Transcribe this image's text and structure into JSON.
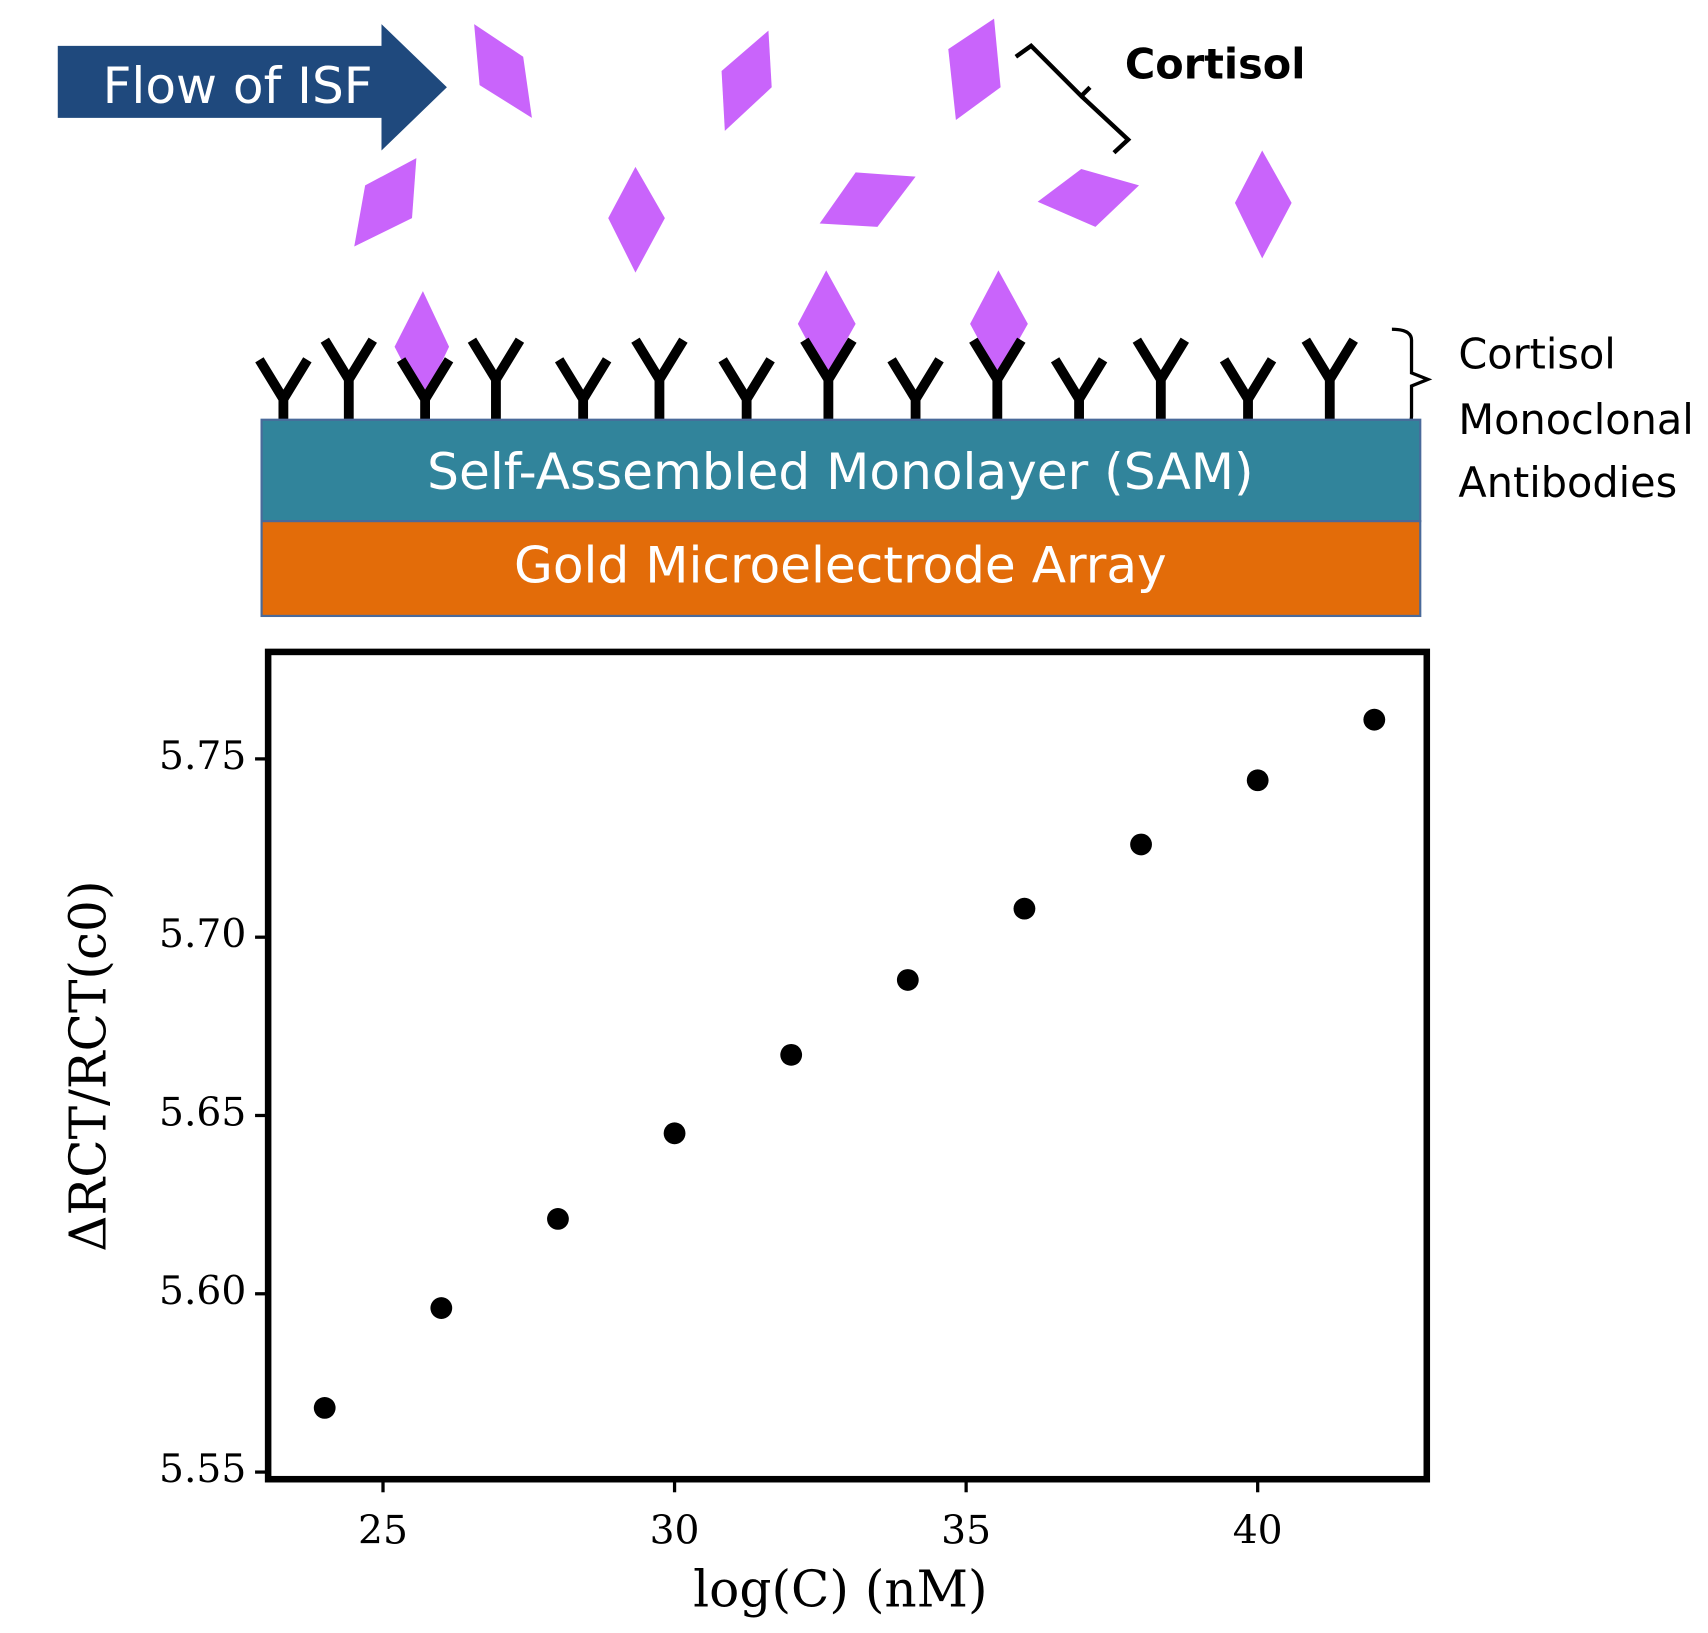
{
  "diagram": {
    "flow_label": "Flow of ISF",
    "cortisol_label": "Cortisol",
    "antibody_label": [
      "Cortisol",
      "Monoclonal",
      "Antibodies"
    ],
    "sam_label": "Self-Assembled Monolayer (SAM)",
    "gold_label": "Gold Microelectrode Array"
  },
  "chart_data": {
    "type": "scatter",
    "color": "#000000",
    "x_label": "log(C) (nM)",
    "y_label": "ΔRCT/RCT(c0)",
    "x": [
      24,
      26,
      28,
      30,
      32,
      34,
      36,
      38,
      40,
      42
    ],
    "values": [
      5.568,
      5.596,
      5.621,
      5.645,
      5.667,
      5.688,
      5.708,
      5.726,
      5.744,
      5.761
    ],
    "xlim": [
      23.03,
      42.9
    ],
    "ylim": [
      5.548,
      5.78
    ],
    "xticks": [
      25,
      30,
      35,
      40
    ],
    "yticks": [
      5.55,
      {
        "value": 5.6,
        "label": "5.60"
      },
      5.65,
      {
        "value": 5.7,
        "label": "5.70"
      },
      5.75
    ]
  }
}
